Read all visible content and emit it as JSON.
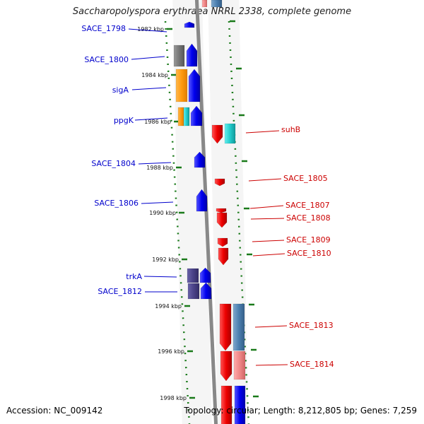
{
  "title": "Saccharopolyspora erythraea NRRL 2338, complete genome",
  "footer": {
    "accession": "Accession: NC_009142",
    "summary": "Topology: circular; Length: 8,212,805 bp; Genes: 7,259"
  },
  "colors": {
    "forward_cds": "#0000ee",
    "reverse_cds": "#ee0000",
    "backbone": "#888888",
    "tick": "#1a7a1a",
    "forward_label": "#0000cc",
    "reverse_label": "#cc0000"
  },
  "ruler": {
    "unit": "kbp",
    "ticks": [
      {
        "label": "1982 kbp"
      },
      {
        "label": "1984 kbp"
      },
      {
        "label": "1986 kbp"
      },
      {
        "label": "1988 kbp"
      },
      {
        "label": "1990 kbp"
      },
      {
        "label": "1992 kbp"
      },
      {
        "label": "1994 kbp"
      },
      {
        "label": "1996 kbp"
      },
      {
        "label": "1998 kbp"
      }
    ]
  },
  "features": {
    "forward_strand": [
      {
        "label": "SACE_1798"
      },
      {
        "label": "SACE_1800"
      },
      {
        "label": "sigA"
      },
      {
        "label": "ppgK"
      },
      {
        "label": "SACE_1804"
      },
      {
        "label": "SACE_1806"
      },
      {
        "label": "trkA"
      },
      {
        "label": "SACE_1812"
      }
    ],
    "reverse_strand": [
      {
        "label": "suhB"
      },
      {
        "label": "SACE_1805"
      },
      {
        "label": "SACE_1807"
      },
      {
        "label": "SACE_1808"
      },
      {
        "label": "SACE_1809"
      },
      {
        "label": "SACE_1810"
      },
      {
        "label": "SACE_1813"
      },
      {
        "label": "SACE_1814"
      }
    ]
  }
}
